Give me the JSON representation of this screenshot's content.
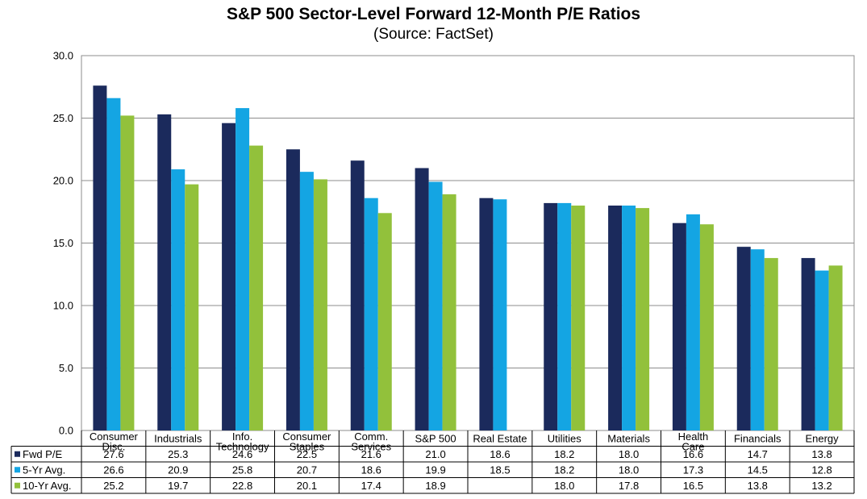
{
  "chart_data": {
    "type": "bar",
    "title": "S&P 500 Sector-Level Forward 12-Month P/E Ratios",
    "subtitle": "(Source: FactSet)",
    "categories": [
      [
        "Consumer",
        "Disc."
      ],
      [
        "Industrials"
      ],
      [
        "Info.",
        "Technology"
      ],
      [
        "Consumer",
        "Staples"
      ],
      [
        "Comm.",
        "Services"
      ],
      [
        "S&P 500"
      ],
      [
        "Real Estate"
      ],
      [
        "Utilities"
      ],
      [
        "Materials"
      ],
      [
        "Health",
        "Care"
      ],
      [
        "Financials"
      ],
      [
        "Energy"
      ]
    ],
    "series": [
      {
        "name": "Fwd P/E",
        "color": "#1b2a5c",
        "values": [
          27.6,
          25.3,
          24.6,
          22.5,
          21.6,
          21.0,
          18.6,
          18.2,
          18.0,
          16.6,
          14.7,
          13.8
        ]
      },
      {
        "name": "5-Yr Avg.",
        "color": "#14a5e3",
        "values": [
          26.6,
          20.9,
          25.8,
          20.7,
          18.6,
          19.9,
          18.5,
          18.2,
          18.0,
          17.3,
          14.5,
          12.8
        ]
      },
      {
        "name": "10-Yr Avg.",
        "color": "#92c13b",
        "values": [
          25.2,
          19.7,
          22.8,
          20.1,
          17.4,
          18.9,
          null,
          18.0,
          17.8,
          16.5,
          13.8,
          13.2
        ]
      }
    ],
    "yticks": [
      "0.0",
      "5.0",
      "10.0",
      "15.0",
      "20.0",
      "25.0",
      "30.0"
    ],
    "ylim": [
      0,
      30
    ],
    "grid": true,
    "legend": "data-table"
  }
}
